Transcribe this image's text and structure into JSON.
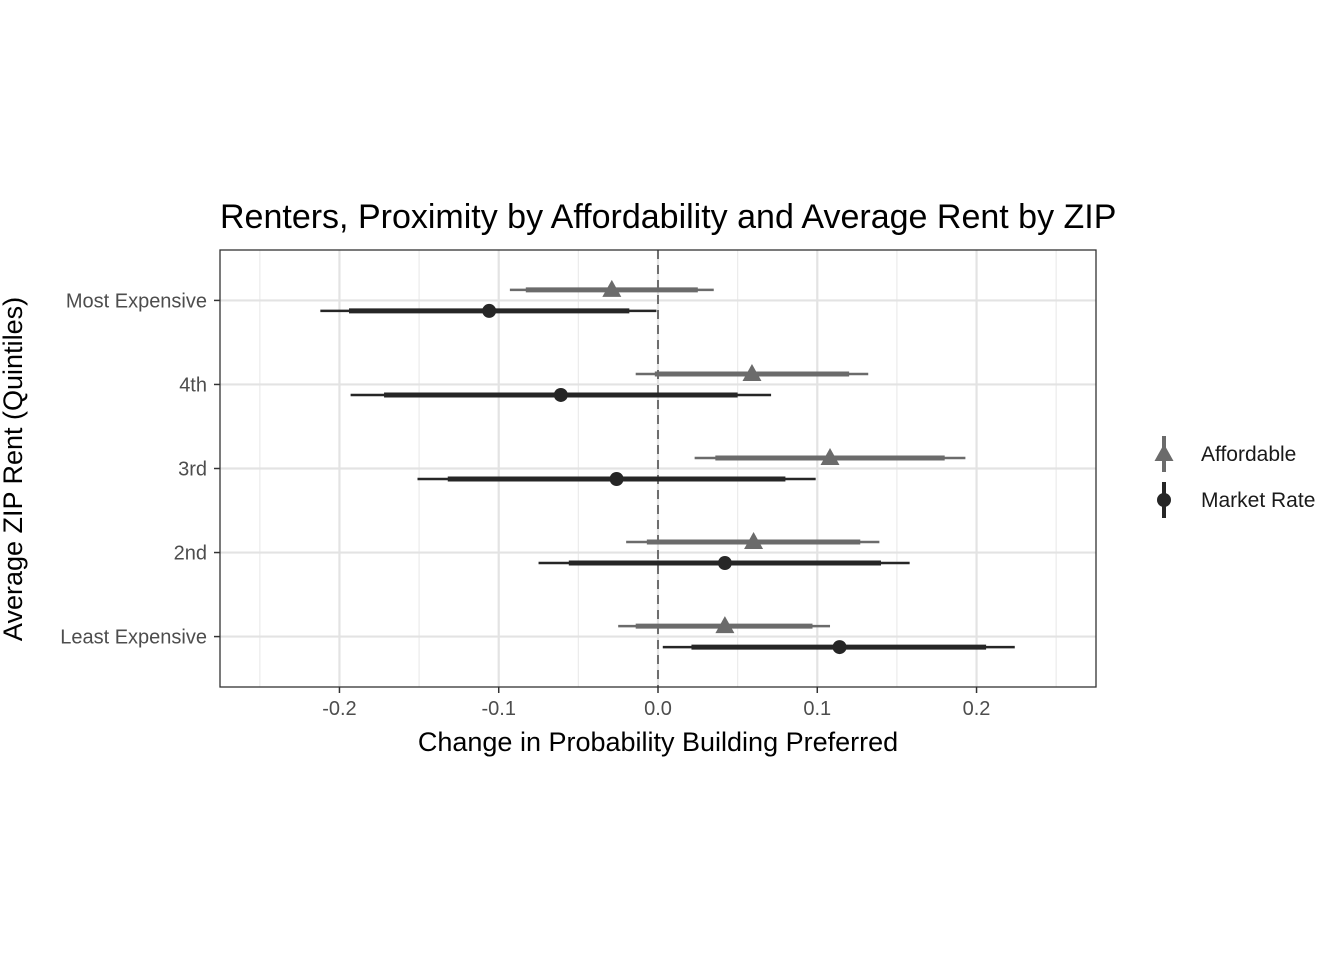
{
  "chart_data": {
    "type": "dot-whisker",
    "title": "Renters, Proximity by Affordability and Average Rent by ZIP",
    "xlabel": "Change in Probability Building Preferred",
    "ylabel": "Average ZIP Rent (Quintiles)",
    "xlim": [
      -0.275,
      0.275
    ],
    "x_ticks": [
      -0.2,
      -0.1,
      0.0,
      0.1,
      0.2
    ],
    "x_tick_labels": [
      "-0.2",
      "-0.1",
      "0.0",
      "0.1",
      "0.2"
    ],
    "reference_line": 0.0,
    "categories": [
      "Most Expensive",
      "4th",
      "3rd",
      "2nd",
      "Least Expensive"
    ],
    "grid": true,
    "legend_position": "right",
    "series": [
      {
        "name": "Affordable",
        "marker": "triangle",
        "color": "#6b6b6b",
        "estimates": [
          -0.029,
          0.059,
          0.108,
          0.06,
          0.042
        ],
        "ci_inner": [
          [
            -0.083,
            0.025
          ],
          [
            -0.002,
            0.12
          ],
          [
            0.036,
            0.18
          ],
          [
            -0.007,
            0.127
          ],
          [
            -0.014,
            0.097
          ]
        ],
        "ci_outer": [
          [
            -0.093,
            0.035
          ],
          [
            -0.014,
            0.132
          ],
          [
            0.023,
            0.193
          ],
          [
            -0.02,
            0.139
          ],
          [
            -0.025,
            0.108
          ]
        ]
      },
      {
        "name": "Market Rate",
        "marker": "circle",
        "color": "#262626",
        "estimates": [
          -0.106,
          -0.061,
          -0.026,
          0.042,
          0.114
        ],
        "ci_inner": [
          [
            -0.194,
            -0.018
          ],
          [
            -0.172,
            0.05
          ],
          [
            -0.132,
            0.08
          ],
          [
            -0.056,
            0.14
          ],
          [
            0.021,
            0.206
          ]
        ],
        "ci_outer": [
          [
            -0.212,
            -0.001
          ],
          [
            -0.193,
            0.071
          ],
          [
            -0.151,
            0.099
          ],
          [
            -0.075,
            0.158
          ],
          [
            0.003,
            0.224
          ]
        ]
      }
    ]
  }
}
